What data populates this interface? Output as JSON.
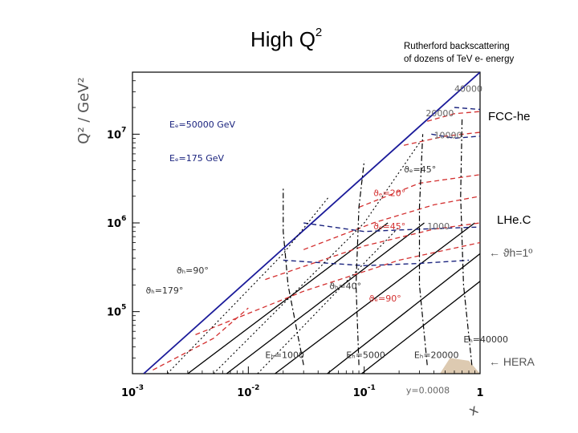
{
  "slide": {
    "title": "High Q",
    "title_sup": "2",
    "subtitle_line1": "Rutherford backscattering",
    "subtitle_line2": "of dozens of TeV e- energy",
    "label_fcc": "FCC-he",
    "label_lhec": "LHe.C",
    "label_theta": "ϑh=1º",
    "label_hera": "HERA",
    "arrow": "←"
  },
  "chart_data": {
    "type": "line",
    "xlabel": "x",
    "ylabel": "Q² / GeV²",
    "xscale": "log",
    "yscale": "log",
    "xlim": [
      0.001,
      1
    ],
    "ylim": [
      20000,
      50000000
    ],
    "x_ticks": [
      {
        "value": 0.001,
        "base": "10",
        "exp": "-3"
      },
      {
        "value": 0.01,
        "base": "10",
        "exp": "-2"
      },
      {
        "value": 0.1,
        "base": "10",
        "exp": "-1"
      },
      {
        "value": 1,
        "base": "1",
        "exp": ""
      }
    ],
    "y_ticks": [
      {
        "value": 100000,
        "base": "10",
        "exp": "5"
      },
      {
        "value": 1000000,
        "base": "10",
        "exp": "6"
      },
      {
        "value": 10000000,
        "base": "10",
        "exp": "7"
      }
    ],
    "legend": {
      "position": "top-left",
      "entries": [
        {
          "label": "Eₑ=50000 GeV",
          "color": "#1a237e"
        },
        {
          "label": "Eₑ=175 GeV",
          "color": "#1a237e"
        }
      ]
    },
    "series": [
      {
        "style": "blue-solid",
        "color": "#1b1b9a",
        "points": [
          [
            0.00125,
            20000
          ],
          [
            1,
            50000000
          ]
        ]
      },
      {
        "style": "black-solid",
        "color": "#000000",
        "points": [
          [
            0.003,
            20000
          ],
          [
            0.16,
            1000000
          ]
        ]
      },
      {
        "style": "black-solid",
        "color": "#000000",
        "points": [
          [
            0.0065,
            20000
          ],
          [
            0.33,
            1000000
          ]
        ]
      },
      {
        "style": "black-solid",
        "color": "#000000",
        "points": [
          [
            0.017,
            20000
          ],
          [
            0.9,
            1000000
          ]
        ]
      },
      {
        "style": "black-solid",
        "color": "#000000",
        "points": [
          [
            0.048,
            20000
          ],
          [
            1,
            450000
          ]
        ]
      },
      {
        "style": "black-solid",
        "color": "#000000",
        "points": [
          [
            0.095,
            20000
          ],
          [
            1,
            220000
          ]
        ]
      },
      {
        "style": "red-dashed",
        "color": "#d32f2f",
        "points": [
          [
            0.0035,
            55000
          ],
          [
            0.03,
            170000
          ],
          [
            0.2,
            380000
          ],
          [
            1,
            600000
          ]
        ]
      },
      {
        "style": "red-dashed",
        "color": "#d32f2f",
        "points": [
          [
            0.014,
            230000
          ],
          [
            0.1,
            550000
          ],
          [
            0.4,
            850000
          ],
          [
            1,
            1000000
          ]
        ]
      },
      {
        "style": "red-dashed",
        "color": "#d32f2f",
        "points": [
          [
            0.03,
            500000
          ],
          [
            0.12,
            1000000
          ],
          [
            0.4,
            1600000
          ],
          [
            1,
            2000000
          ]
        ]
      },
      {
        "style": "red-dashed",
        "color": "#d32f2f",
        "points": [
          [
            0.09,
            1500000
          ],
          [
            0.3,
            2800000
          ],
          [
            1,
            3500000
          ]
        ]
      },
      {
        "style": "red-dashed",
        "color": "#d32f2f",
        "points": [
          [
            0.0015,
            22000
          ],
          [
            0.005,
            50000
          ],
          [
            0.01,
            110000
          ]
        ]
      },
      {
        "style": "red-dashed",
        "color": "#d32f2f",
        "points": [
          [
            0.22,
            7500000
          ],
          [
            0.5,
            9500000
          ],
          [
            1,
            10500000
          ]
        ]
      },
      {
        "style": "red-dashed",
        "color": "#d32f2f",
        "points": [
          [
            0.35,
            14000000
          ],
          [
            0.6,
            17000000
          ],
          [
            1,
            18000000
          ]
        ]
      },
      {
        "style": "blue-dashed",
        "color": "#1a237e",
        "points": [
          [
            0.03,
            1000000
          ],
          [
            0.1,
            800000
          ],
          [
            0.3,
            850000
          ],
          [
            1,
            900000
          ]
        ]
      },
      {
        "style": "blue-dashed",
        "color": "#1a237e",
        "points": [
          [
            0.02,
            380000
          ],
          [
            0.1,
            330000
          ],
          [
            0.3,
            350000
          ],
          [
            0.8,
            380000
          ]
        ]
      },
      {
        "style": "blue-dashed",
        "color": "#1a237e",
        "points": [
          [
            0.38,
            10000000
          ],
          [
            0.6,
            9000000
          ],
          [
            1,
            9500000
          ]
        ]
      },
      {
        "style": "blue-dashed",
        "color": "#1a237e",
        "points": [
          [
            0.6,
            20000000
          ],
          [
            1,
            19000000
          ]
        ]
      },
      {
        "style": "black-dashdot",
        "color": "#000000",
        "points": [
          [
            0.03,
            25000
          ],
          [
            0.022,
            200000
          ],
          [
            0.02,
            800000
          ],
          [
            0.02,
            2500000
          ]
        ]
      },
      {
        "style": "black-dashdot",
        "color": "#000000",
        "points": [
          [
            0.09,
            25000
          ],
          [
            0.085,
            200000
          ],
          [
            0.09,
            1500000
          ],
          [
            0.1,
            5000000
          ]
        ]
      },
      {
        "style": "black-dashdot",
        "color": "#000000",
        "points": [
          [
            0.35,
            25000
          ],
          [
            0.3,
            200000
          ],
          [
            0.3,
            1500000
          ],
          [
            0.32,
            10000000
          ]
        ]
      },
      {
        "style": "black-dashdot",
        "color": "#000000",
        "points": [
          [
            0.85,
            25000
          ],
          [
            0.72,
            200000
          ],
          [
            0.68,
            2000000
          ],
          [
            0.7,
            15000000
          ]
        ]
      },
      {
        "style": "black-dotted",
        "color": "#000000",
        "points": [
          [
            0.002,
            20000
          ],
          [
            0.02,
            450000
          ],
          [
            0.05,
            2000000
          ]
        ]
      },
      {
        "style": "black-dotted",
        "color": "#000000",
        "points": [
          [
            0.005,
            20000
          ],
          [
            0.1,
            1000000
          ],
          [
            0.3,
            8000000
          ]
        ]
      },
      {
        "style": "black-dotted",
        "color": "#000000",
        "points": [
          [
            0.012,
            20000
          ],
          [
            0.2,
            900000
          ]
        ]
      }
    ],
    "annotations": [
      {
        "text": "40000",
        "x": 0.6,
        "y": 30000000,
        "color": "#666666"
      },
      {
        "text": "20000",
        "x": 0.34,
        "y": 16000000,
        "color": "#666666"
      },
      {
        "text": "10000",
        "x": 0.4,
        "y": 9000000,
        "color": "#666666"
      },
      {
        "text": "ϑₑ=45°",
        "x": 0.22,
        "y": 3700000,
        "color": "#333333"
      },
      {
        "text": "ϑₑ=20°",
        "x": 0.12,
        "y": 2000000,
        "color": "#d32f2f"
      },
      {
        "text": "ϑₑ=45°",
        "x": 0.12,
        "y": 850000,
        "color": "#d32f2f"
      },
      {
        "text": "ϑₑ=90°",
        "x": 0.11,
        "y": 130000,
        "color": "#d32f2f"
      },
      {
        "text": "ϑₕ=40°",
        "x": 0.05,
        "y": 180000,
        "color": "#333333"
      },
      {
        "text": "ϑₕ=179°",
        "x": 0.0013,
        "y": 160000,
        "color": "#333333"
      },
      {
        "text": "ϑₕ=90°",
        "x": 0.0024,
        "y": 270000,
        "color": "#333333"
      },
      {
        "text": "1000",
        "x": 0.35,
        "y": 850000,
        "color": "#666666"
      },
      {
        "text": "Eₕ=1000",
        "x": 0.014,
        "y": 30000,
        "color": "#333333"
      },
      {
        "text": "Eₕ=5000",
        "x": 0.07,
        "y": 30000,
        "color": "#333333"
      },
      {
        "text": "Eₕ=20000",
        "x": 0.27,
        "y": 30000,
        "color": "#333333"
      },
      {
        "text": "Eₕ=40000",
        "x": 0.72,
        "y": 45000,
        "color": "#333333"
      },
      {
        "text": "y=0.0008",
        "x": 0.23,
        "y": 12000,
        "color": "#666666"
      }
    ]
  }
}
